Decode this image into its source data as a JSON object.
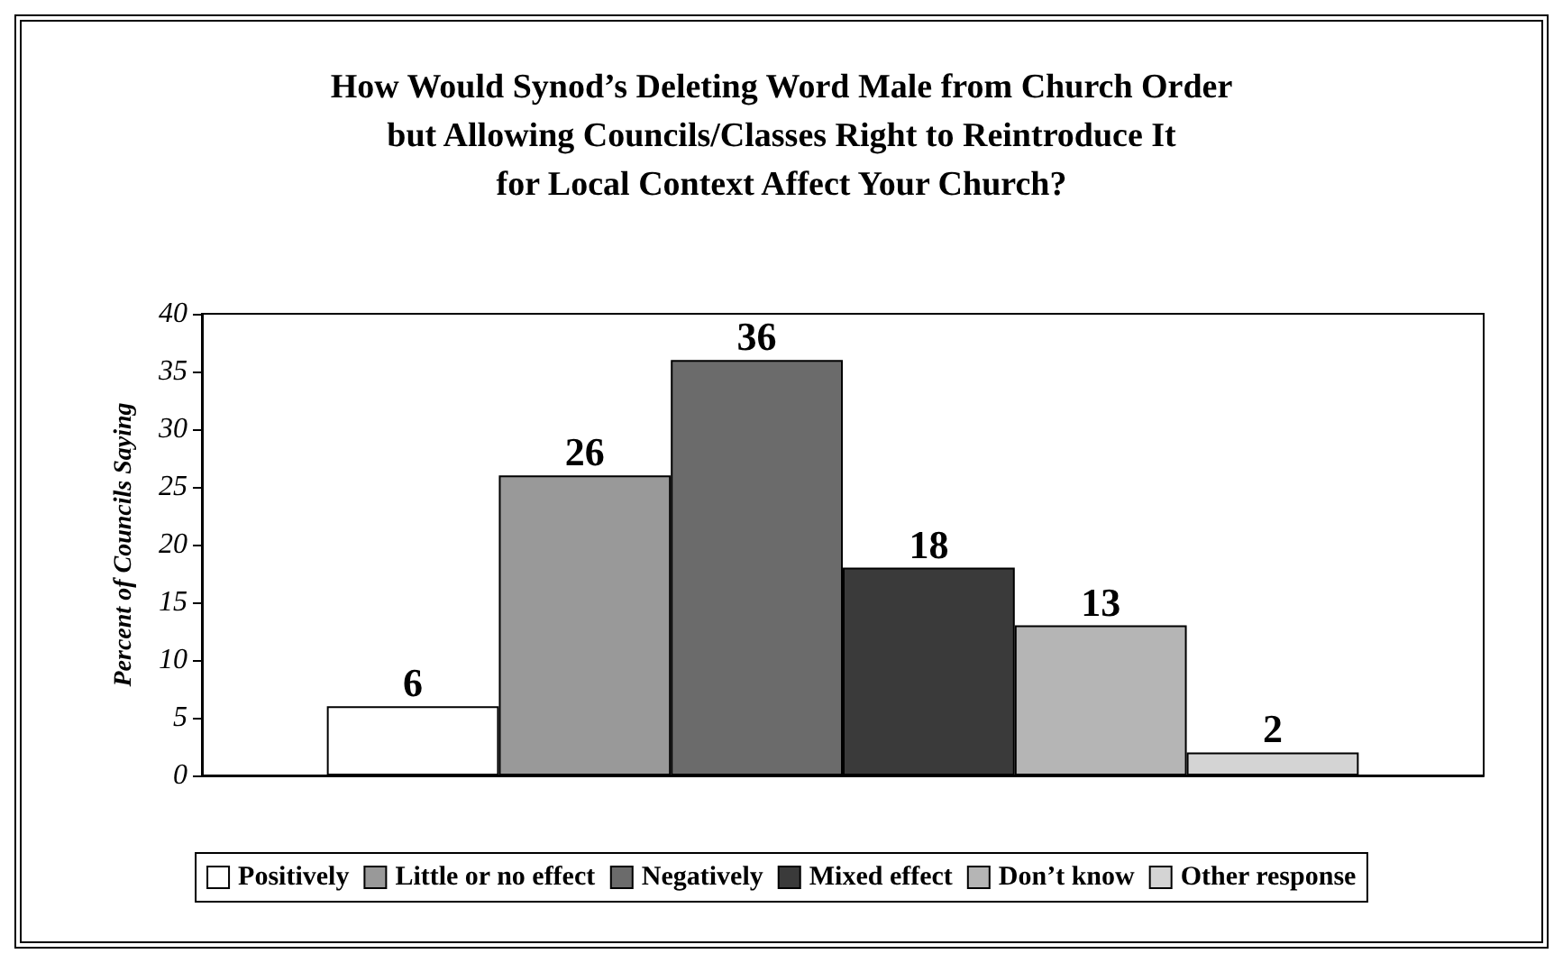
{
  "chart_data": {
    "type": "bar",
    "title": "How Would Synod’s Deleting Word Male from Church Order\nbut Allowing Councils/Classes Right to Reintroduce It\nfor Local Context Affect Your Church?",
    "ylabel": "Percent of Councils Saying",
    "categories": [
      null
    ],
    "series": [
      {
        "name": "Positively",
        "color": "#ffffff",
        "values": [
          6
        ]
      },
      {
        "name": "Little or no effect",
        "color": "#999999",
        "values": [
          26
        ]
      },
      {
        "name": "Negatively",
        "color": "#6b6b6b",
        "values": [
          36
        ]
      },
      {
        "name": "Mixed effect",
        "color": "#3a3a3a",
        "values": [
          18
        ]
      },
      {
        "name": "Don’t know",
        "color": "#b5b5b5",
        "values": [
          13
        ]
      },
      {
        "name": "Other response",
        "color": "#d4d4d4",
        "values": [
          2
        ]
      }
    ],
    "ylim": [
      0,
      40
    ],
    "yticks": [
      0,
      5,
      10,
      15,
      20,
      25,
      30,
      35,
      40
    ],
    "grid": false,
    "legend": "bottom",
    "data_labels": true
  }
}
